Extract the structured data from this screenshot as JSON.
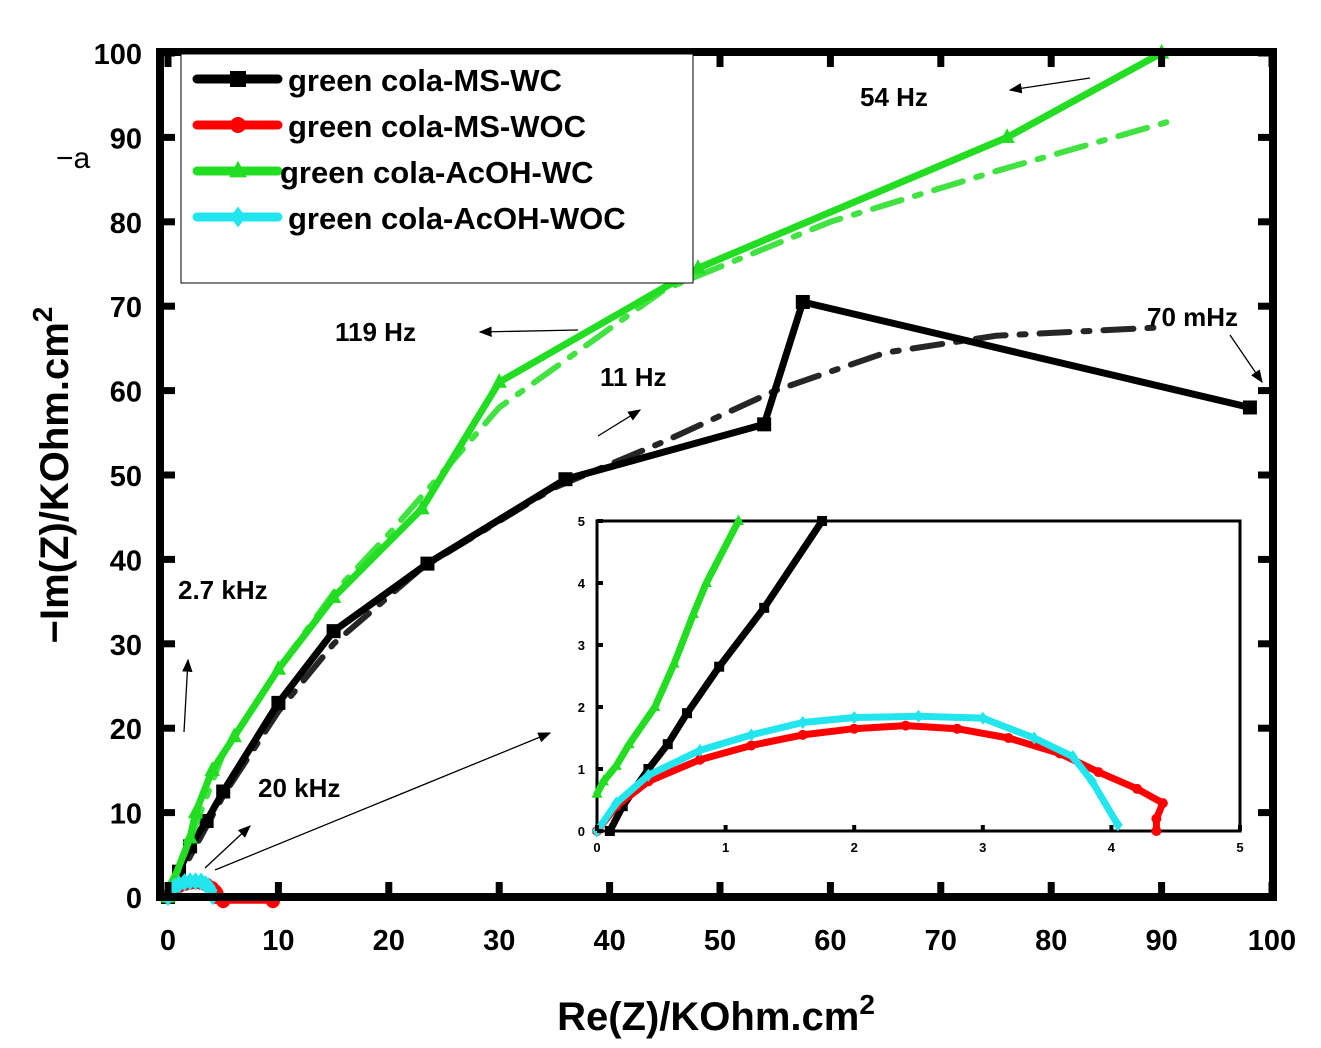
{
  "chart_data": {
    "type": "line",
    "xlabel": "Re(Z)/KOhm.cm",
    "xlabel_sup": "2",
    "ylabel": "−Im(Z)/KOhm.cm",
    "ylabel_sup": "2",
    "stray_label": "−a",
    "xlim": [
      0,
      100
    ],
    "ylim": [
      0,
      100
    ],
    "xticks": [
      "0",
      "10",
      "20",
      "30",
      "40",
      "50",
      "60",
      "70",
      "80",
      "90",
      "100"
    ],
    "yticks": [
      "0",
      "10",
      "20",
      "30",
      "40",
      "50",
      "60",
      "70",
      "80",
      "90",
      "100"
    ],
    "legend_position": "top-left",
    "colors": {
      "MS-WC": "#000000",
      "MS-WOC": "#ff0000",
      "AcOH-WC": "#22dd22",
      "AcOH-WOC": "#22e5ee"
    },
    "series": [
      {
        "name": "green cola-MS-WC",
        "color": "#000000",
        "marker": "square",
        "x": [
          0,
          1,
          2,
          3.5,
          5,
          10,
          15,
          23.5,
          36,
          54,
          57.5,
          98
        ],
        "y": [
          0,
          3,
          6,
          9,
          12.5,
          23,
          31.5,
          39.5,
          49.5,
          56,
          70.5,
          58
        ],
        "fit_x": [
          0,
          5,
          10,
          15,
          23,
          35,
          45,
          55,
          65,
          75,
          90
        ],
        "fit_y": [
          0,
          12,
          22,
          30,
          39,
          48.5,
          54,
          60,
          64.5,
          66.5,
          67.5
        ]
      },
      {
        "name": "green cola-MS-WOC",
        "color": "#ff0000",
        "marker": "circle",
        "x": [
          0,
          0.5,
          1,
          1.5,
          2,
          2.5,
          3,
          3.5,
          4,
          4.3,
          4.4,
          4.35,
          4.35,
          5,
          9.5
        ],
        "y": [
          0,
          0.9,
          1.3,
          1.55,
          1.68,
          1.72,
          1.68,
          1.45,
          1.05,
          0.65,
          0.45,
          0.2,
          0,
          -0.5,
          -0.5
        ]
      },
      {
        "name": "green cola-AcOH-WC",
        "color": "#22dd22",
        "marker": "triangle",
        "x": [
          0,
          0.5,
          2,
          2.5,
          4,
          6,
          10,
          15,
          23,
          30,
          48,
          76,
          90
        ],
        "y": [
          0,
          2,
          7,
          10,
          15,
          19,
          27,
          35.5,
          46,
          61,
          74.5,
          90,
          100
        ],
        "fit_x": [
          0,
          5,
          10,
          15,
          20,
          30,
          45,
          60,
          75,
          91
        ],
        "fit_y": [
          0,
          17,
          27,
          36,
          43,
          58,
          72,
          80,
          86,
          92
        ]
      },
      {
        "name": "green cola-AcOH-WOC",
        "color": "#22e5ee",
        "marker": "diamond",
        "x": [
          0,
          0.3,
          0.6,
          1,
          1.5,
          2,
          2.5,
          3,
          3.4,
          3.7,
          3.85,
          4.05
        ],
        "y": [
          0,
          0.8,
          1.2,
          1.5,
          1.75,
          1.85,
          1.85,
          1.82,
          1.5,
          1.2,
          0.8,
          0.1
        ]
      }
    ],
    "annotations": [
      {
        "text": "54 Hz"
      },
      {
        "text": "119 Hz"
      },
      {
        "text": "11 Hz"
      },
      {
        "text": "70 mHz"
      },
      {
        "text": "2.7 kHz"
      },
      {
        "text": "20 kHz"
      }
    ],
    "inset": {
      "xlim": [
        0,
        5
      ],
      "ylim": [
        0,
        5
      ],
      "xticks": [
        "0",
        "1",
        "2",
        "3",
        "4",
        "5"
      ],
      "yticks": [
        "0",
        "1",
        "2",
        "3",
        "4",
        "5"
      ],
      "series": [
        {
          "name": "green cola-MS-WC",
          "color": "#000000",
          "x": [
            0.1,
            0.2,
            0.4,
            0.55,
            0.7,
            0.95,
            1.3,
            1.75
          ],
          "y": [
            0,
            0.4,
            1,
            1.4,
            1.9,
            2.65,
            3.6,
            5
          ]
        },
        {
          "name": "green cola-MS-WOC",
          "color": "#ff0000",
          "x": [
            0,
            0.15,
            0.4,
            0.8,
            1.2,
            1.6,
            2,
            2.4,
            2.8,
            3.2,
            3.6,
            3.9,
            4.2,
            4.4,
            4.35,
            4.35
          ],
          "y": [
            0,
            0.4,
            0.8,
            1.15,
            1.38,
            1.55,
            1.65,
            1.7,
            1.65,
            1.5,
            1.25,
            0.95,
            0.68,
            0.45,
            0.2,
            0
          ]
        },
        {
          "name": "green cola-AcOH-WC",
          "color": "#22dd22",
          "x": [
            0,
            0.05,
            0.15,
            0.25,
            0.45,
            0.6,
            0.75,
            0.85,
            1.1
          ],
          "y": [
            0.6,
            0.8,
            1.05,
            1.4,
            2,
            2.7,
            3.5,
            4,
            5
          ]
        },
        {
          "name": "green cola-AcOH-WOC",
          "color": "#22e5ee",
          "x": [
            0,
            0.15,
            0.4,
            0.8,
            1.2,
            1.6,
            2,
            2.5,
            3,
            3.4,
            3.7,
            3.85,
            4.05
          ],
          "y": [
            0,
            0.45,
            0.9,
            1.3,
            1.55,
            1.75,
            1.83,
            1.85,
            1.82,
            1.5,
            1.2,
            0.8,
            0.1
          ]
        }
      ]
    }
  }
}
